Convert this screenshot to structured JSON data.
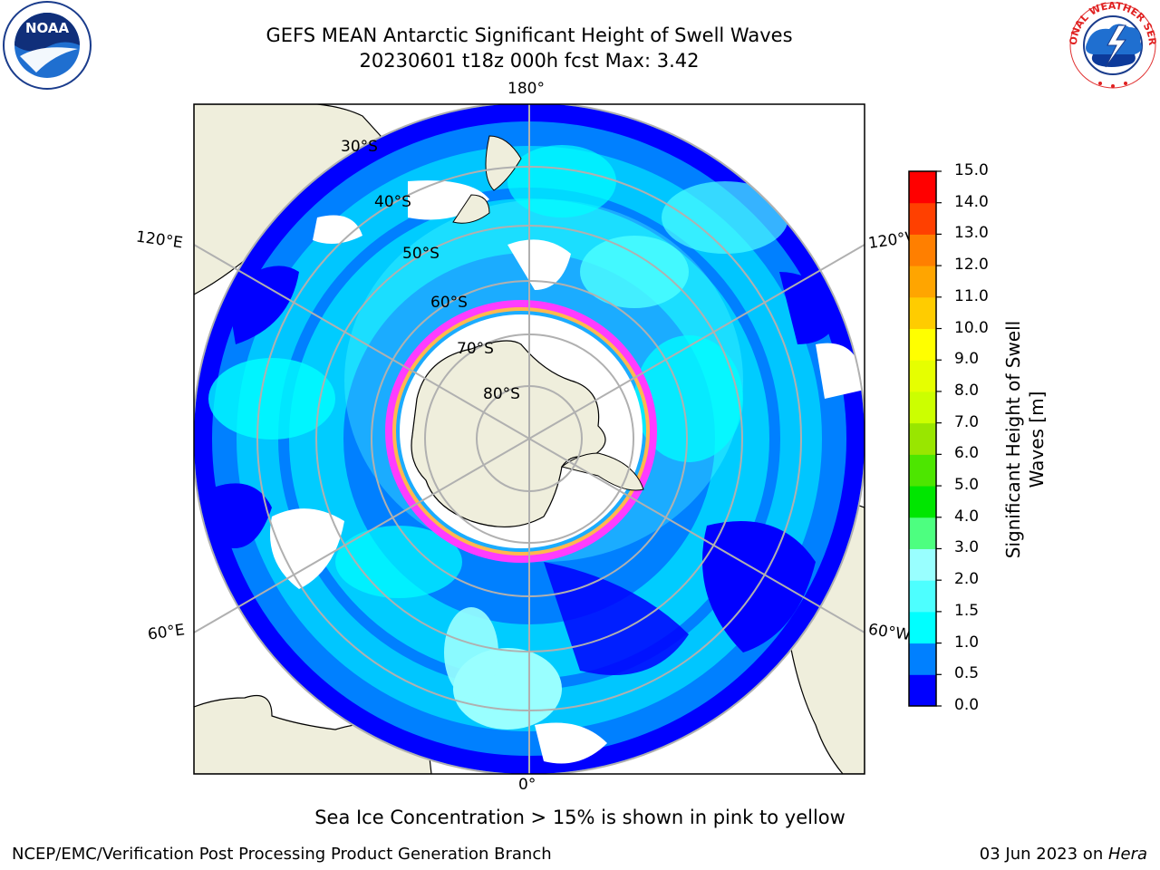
{
  "header": {
    "title_line1": "GEFS MEAN Antarctic Significant Height of Swell Waves",
    "title_line2": "20230601 t18z 000h fcst   Max: 3.42"
  },
  "logos": {
    "left": "NOAA",
    "left_ring_text": "NATIONAL OCEANIC AND ATMOSPHERIC ADMINISTRATION · U.S. DEPARTMENT OF COMMERCE",
    "right_ring_text": "NATIONAL WEATHER SERVICE"
  },
  "map": {
    "projection": "south-polar-stereographic",
    "longitude_labels": {
      "top": "180°",
      "bottom": "0°",
      "left_upper": "120°E",
      "left_lower": "60°E",
      "right_upper": "120°W",
      "right_lower": "60°W"
    },
    "latitude_labels": [
      "30°S",
      "40°S",
      "50°S",
      "60°S",
      "70°S",
      "80°S"
    ],
    "ice_colors": [
      "#ff3cff",
      "#ffb84d",
      "#ffe24d"
    ],
    "land_color": "#efeedc",
    "ocean_colors": [
      "#0000ff",
      "#0080ff",
      "#00ffff",
      "#99ffff"
    ]
  },
  "colorbar": {
    "label": "Significant Height of Swell Waves [m]",
    "label_line1": "Significant Height of Swell",
    "label_line2": "Waves [m]",
    "ticks": [
      "0.0",
      "0.5",
      "1.0",
      "1.5",
      "2.0",
      "3.0",
      "4.0",
      "5.0",
      "6.0",
      "7.0",
      "8.0",
      "9.0",
      "10.0",
      "11.0",
      "12.0",
      "13.0",
      "14.0",
      "15.0"
    ],
    "colors": [
      "#0000ff",
      "#0080ff",
      "#00ffff",
      "#4dffff",
      "#99ffff",
      "#4dff80",
      "#00e600",
      "#4de600",
      "#99e600",
      "#ccff00",
      "#e6ff00",
      "#ffff00",
      "#ffcc00",
      "#ffa500",
      "#ff7f00",
      "#ff4000",
      "#ff0000"
    ]
  },
  "caption": "Sea Ice Concentration > 15% is shown in pink to yellow",
  "footer": {
    "left": "NCEP/EMC/Verification Post Processing Product Generation Branch",
    "right_prefix": "03 Jun 2023 on ",
    "right_host": "Hera"
  }
}
